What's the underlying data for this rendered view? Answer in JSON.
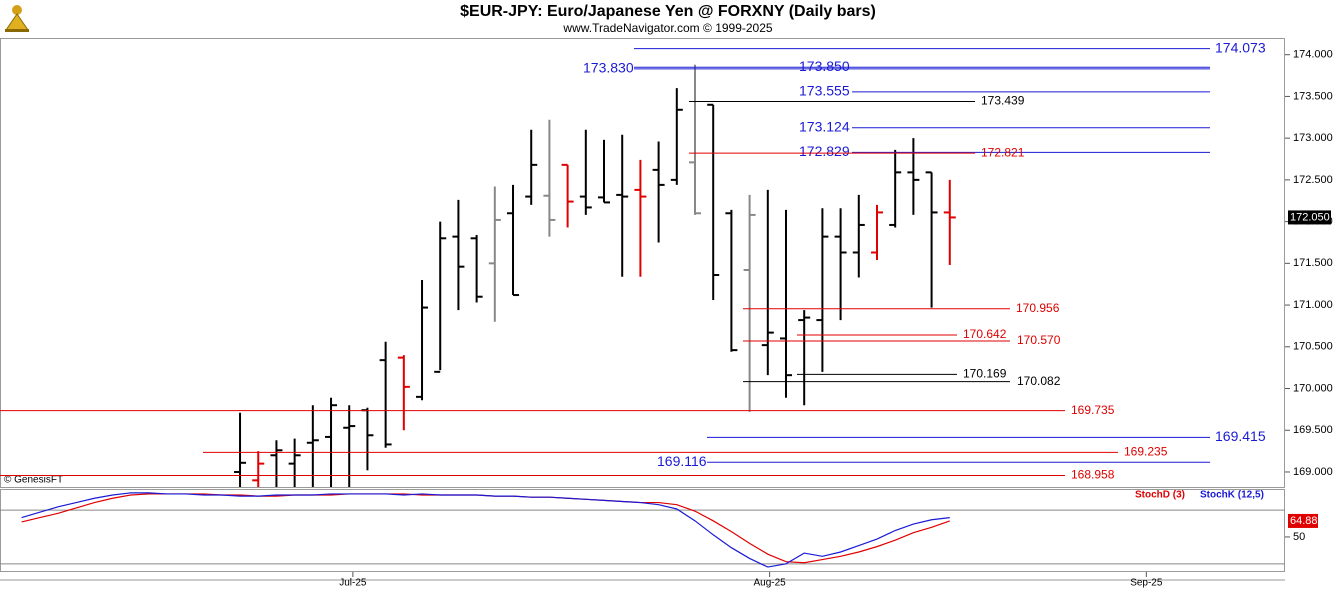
{
  "header": {
    "title": "$EUR-JPY:  Euro/Japanese Yen @ FORXNY  (Daily bars)",
    "subtitle": "www.TradeNavigator.com © 1999-2025"
  },
  "chart_data": [
    {
      "type": "ohlc",
      "watermark": "© GenesisFT",
      "categories": [
        null,
        null,
        null,
        null,
        null,
        null,
        null,
        null,
        null,
        null,
        null,
        null,
        null,
        null,
        null,
        null,
        null,
        null,
        null,
        null,
        null,
        null,
        null,
        null,
        null,
        null,
        null,
        null,
        null,
        null,
        null,
        null,
        null,
        null,
        null,
        null,
        null,
        null,
        null,
        null
      ],
      "open": [
        169.0,
        168.9,
        169.2,
        169.1,
        169.35,
        169.42,
        169.53,
        169.74,
        170.34,
        170.37,
        169.9,
        170.2,
        171.82,
        171.8,
        171.5,
        172.1,
        172.3,
        172.31,
        172.68,
        172.3,
        172.29,
        172.32,
        172.38,
        172.62,
        172.5,
        172.71,
        173.4,
        172.1,
        171.42,
        170.52,
        170.6,
        170.82,
        170.82,
        171.82,
        171.63,
        171.63,
        171.96,
        172.59,
        172.59,
        172.11
      ],
      "high": [
        169.71,
        169.25,
        169.38,
        169.4,
        169.8,
        169.89,
        169.8,
        169.77,
        170.56,
        170.4,
        171.3,
        172.0,
        172.26,
        171.84,
        172.42,
        172.44,
        173.1,
        173.22,
        172.68,
        173.1,
        172.98,
        173.04,
        172.74,
        172.96,
        173.6,
        173.88,
        173.4,
        172.14,
        172.32,
        172.38,
        172.14,
        170.94,
        172.16,
        172.16,
        172.32,
        172.2,
        172.86,
        173.0,
        172.59,
        172.5
      ],
      "low": [
        168.82,
        168.82,
        168.82,
        168.82,
        168.82,
        168.82,
        168.82,
        169.02,
        169.29,
        169.5,
        169.86,
        170.22,
        170.94,
        171.03,
        170.8,
        171.12,
        172.2,
        171.82,
        171.93,
        172.08,
        172.23,
        171.34,
        171.34,
        171.75,
        172.44,
        172.08,
        171.06,
        170.44,
        169.72,
        170.16,
        169.89,
        169.8,
        170.2,
        170.82,
        171.33,
        171.54,
        171.93,
        172.08,
        170.97,
        171.48
      ],
      "close": [
        169.11,
        169.1,
        169.26,
        169.2,
        169.38,
        169.8,
        169.55,
        169.44,
        169.33,
        170.02,
        170.97,
        171.8,
        171.46,
        171.1,
        172.02,
        171.12,
        172.68,
        172.02,
        172.24,
        172.17,
        172.23,
        172.3,
        172.3,
        172.44,
        173.34,
        172.1,
        171.36,
        170.46,
        172.08,
        170.67,
        170.16,
        170.85,
        171.82,
        171.63,
        171.96,
        172.11,
        172.59,
        172.5,
        172.11,
        172.05
      ],
      "colors": [
        "#000000",
        "#e00000",
        "#000000",
        "#000000",
        "#000000",
        "#000000",
        "#000000",
        "#000000",
        "#000000",
        "#e00000",
        "#000000",
        "#000000",
        "#000000",
        "#000000",
        "#888888",
        "#000000",
        "#000000",
        "#888888",
        "#e00000",
        "#000000",
        "#000000",
        "#000000",
        "#e00000",
        "#000000",
        "#000000",
        "#888888",
        "#000000",
        "#000000",
        "#888888",
        "#000000",
        "#000000",
        "#000000",
        "#000000",
        "#000000",
        "#000000",
        "#e00000",
        "#000000",
        "#000000",
        "#000000",
        "#e00000"
      ],
      "xlim": [
        -13.19,
        57.42
      ],
      "xticks": [
        {
          "value": 6.2,
          "label": "Jul-25"
        },
        {
          "value": 29.1,
          "label": "Aug-25"
        },
        {
          "value": 49.8,
          "label": "Sep-25"
        }
      ],
      "ylim": [
        168.82,
        174.2
      ],
      "yticks": [
        {
          "value": 169,
          "label": "169.000"
        },
        {
          "value": 169.5,
          "label": "169.500"
        },
        {
          "value": 170,
          "label": "170.000"
        },
        {
          "value": 170.5,
          "label": "170.500"
        },
        {
          "value": 171,
          "label": "171.000"
        },
        {
          "value": 171.5,
          "label": "171.500"
        },
        {
          "value": 172,
          "label": "172.000"
        },
        {
          "value": 172.5,
          "label": "172.500"
        },
        {
          "value": 173,
          "label": "173.000"
        },
        {
          "value": 173.5,
          "label": "173.500"
        },
        {
          "value": 174,
          "label": "174.000"
        }
      ],
      "last_price": {
        "value": 172.05,
        "label": "172.050"
      },
      "levels": [
        {
          "value": 174.073,
          "label": "174.073",
          "color": "#1a1ad6"
        },
        {
          "value": 173.83,
          "label": "173.830",
          "color": "#1a1ad6"
        },
        {
          "value": 173.85,
          "label": "173.850",
          "color": "#1a1ad6"
        },
        {
          "value": 173.555,
          "label": "173.555",
          "color": "#1a1ad6"
        },
        {
          "value": 173.439,
          "label": "173.439",
          "color": "#000000"
        },
        {
          "value": 173.124,
          "label": "173.124",
          "color": "#1a1ad6"
        },
        {
          "value": 172.829,
          "label": "172.829",
          "color": "#1a1ad6"
        },
        {
          "value": 172.821,
          "label": "172.821",
          "color": "#e00000"
        },
        {
          "value": 170.956,
          "label": "170.956",
          "color": "#e00000"
        },
        {
          "value": 170.642,
          "label": "170.642",
          "color": "#e00000"
        },
        {
          "value": 170.57,
          "label": "170.570",
          "color": "#e00000"
        },
        {
          "value": 170.169,
          "label": "170.169",
          "color": "#000000"
        },
        {
          "value": 170.082,
          "label": "170.082",
          "color": "#000000"
        },
        {
          "value": 169.735,
          "label": "169.735",
          "color": "#e00000"
        },
        {
          "value": 169.415,
          "label": "169.415",
          "color": "#1a1ad6"
        },
        {
          "value": 169.235,
          "label": "169.235",
          "color": "#e00000"
        },
        {
          "value": 169.116,
          "label": "169.116",
          "color": "#1a1ad6"
        },
        {
          "value": 168.958,
          "label": "168.958",
          "color": "#e00000"
        }
      ]
    },
    {
      "type": "line",
      "x": [
        -12,
        -11,
        -10,
        -9,
        -8,
        -7,
        -6,
        -5,
        -4,
        -3,
        -2,
        -1,
        0,
        1,
        2,
        3,
        4,
        5,
        6,
        7,
        8,
        9,
        10,
        11,
        12,
        13,
        14,
        15,
        16,
        17,
        18,
        19,
        20,
        21,
        22,
        23,
        24,
        25,
        26,
        27,
        28,
        29,
        30,
        31,
        32,
        33,
        34,
        35,
        36,
        37,
        38,
        39
      ],
      "series": [
        {
          "name": "StochD (3)",
          "color": "#e00000",
          "values": [
            64,
            68,
            72,
            77,
            82,
            86,
            89,
            90,
            90,
            90,
            90,
            89,
            89,
            88,
            88,
            89,
            89,
            89,
            90,
            90,
            90,
            90,
            89,
            89,
            89,
            89,
            88,
            88,
            87,
            87,
            86,
            85,
            84,
            83,
            82,
            82,
            80,
            74,
            65,
            55,
            44,
            34,
            27,
            26,
            29,
            32,
            36,
            41,
            47,
            54,
            59,
            64.88
          ]
        },
        {
          "name": "StochK (12,5)",
          "color": "#1a1ad6",
          "values": [
            68,
            73,
            78,
            82,
            86,
            89,
            91,
            91,
            90,
            90,
            89,
            89,
            88,
            88,
            89,
            89,
            89,
            90,
            90,
            90,
            90,
            89,
            90,
            89,
            89,
            89,
            88,
            88,
            87,
            87,
            86,
            85,
            84,
            83,
            82,
            80,
            76,
            65,
            52,
            40,
            30,
            22,
            25,
            35,
            32,
            36,
            42,
            48,
            56,
            62,
            66,
            68
          ]
        }
      ],
      "ylim": [
        17.4,
        94.6
      ],
      "yticks": [
        50
      ],
      "hlines": [
        75,
        25
      ]
    }
  ]
}
